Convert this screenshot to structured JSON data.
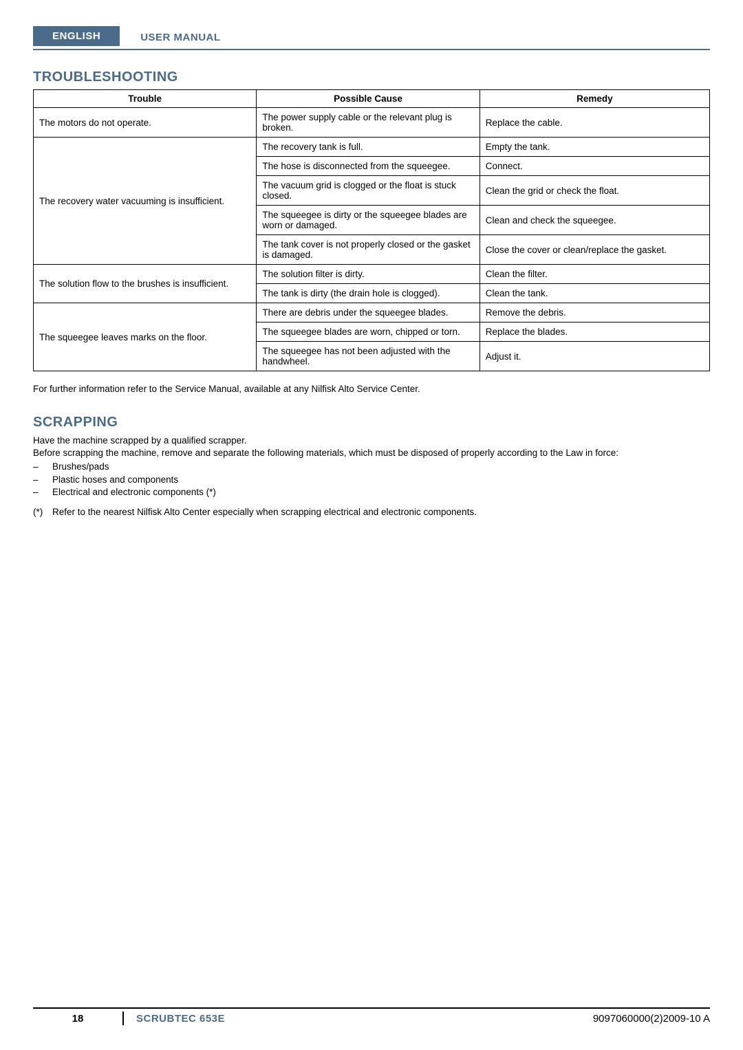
{
  "header": {
    "language": "ENGLISH",
    "manual_label": "USER MANUAL"
  },
  "troubleshooting": {
    "title": "TROUBLESHOOTING",
    "columns": [
      "Trouble",
      "Possible Cause",
      "Remedy"
    ],
    "rows": [
      {
        "trouble": "The motors do not operate.",
        "cause": "The power supply cable or the relevant plug is broken.",
        "remedy": "Replace the cable."
      },
      {
        "trouble": "The recovery water vacuuming is insufficient.",
        "cause": "The recovery tank is full.",
        "remedy": "Empty the tank."
      },
      {
        "trouble": "",
        "cause": "The hose is disconnected from the squeegee.",
        "remedy": "Connect."
      },
      {
        "trouble": "",
        "cause": "The vacuum grid is clogged or the float is stuck closed.",
        "remedy": "Clean the grid or check the float."
      },
      {
        "trouble": "",
        "cause": "The squeegee is dirty or the squeegee blades are worn or damaged.",
        "remedy": "Clean and check the squeegee."
      },
      {
        "trouble": "",
        "cause": "The tank cover is not properly closed or the gasket is damaged.",
        "remedy": "Close the cover or clean/replace the gasket."
      },
      {
        "trouble": "The solution flow to the brushes is insufficient.",
        "cause": "The solution filter is dirty.",
        "remedy": "Clean the filter."
      },
      {
        "trouble": "",
        "cause": "The tank is dirty (the drain hole is clogged).",
        "remedy": "Clean the tank."
      },
      {
        "trouble": "The squeegee leaves marks on the floor.",
        "cause": "There are debris under the squeegee blades.",
        "remedy": "Remove the debris."
      },
      {
        "trouble": "",
        "cause": "The squeegee blades are worn, chipped or torn.",
        "remedy": "Replace the blades."
      },
      {
        "trouble": "",
        "cause": "The squeegee has not been adjusted with the handwheel.",
        "remedy": "Adjust it."
      }
    ],
    "note": "For further information refer to the Service Manual, available at any Nilfisk Alto Service Center."
  },
  "scrapping": {
    "title": "SCRAPPING",
    "intro1": "Have the machine scrapped by a qualified scrapper.",
    "intro2": "Before scrapping the machine, remove and separate the following materials, which must be disposed of properly according to the Law in force:",
    "items": [
      "Brushes/pads",
      "Plastic hoses and components",
      "Electrical and electronic components (*)"
    ],
    "footnote_marker": "(*)",
    "footnote": "Refer to the nearest Nilfisk Alto Center especially when scrapping electrical and electronic components."
  },
  "footer": {
    "page": "18",
    "model": "SCRUBTEC 653E",
    "code": "9097060000(2)2009-10 A"
  },
  "colors": {
    "accent": "#4a6b8a",
    "text": "#000000",
    "background": "#ffffff"
  }
}
